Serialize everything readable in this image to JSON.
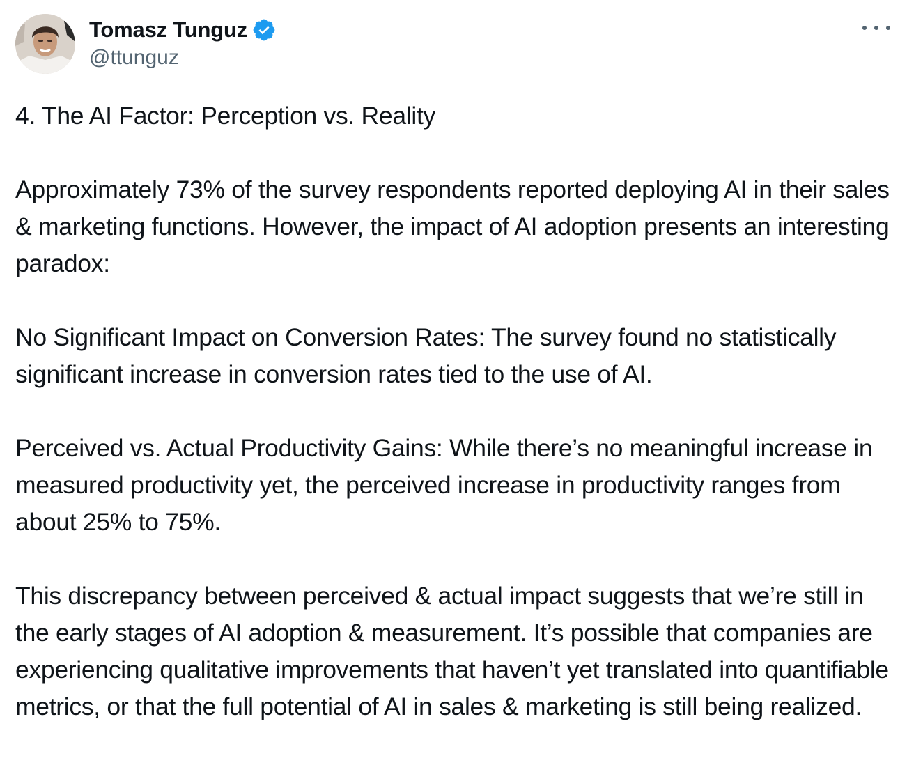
{
  "author": {
    "display_name": "Tomasz Tunguz",
    "handle": "@ttunguz",
    "verified_icon": "verified-badge-icon",
    "verified_color": "#1d9bf0"
  },
  "menu": {
    "icon": "more-options-icon"
  },
  "tweet": {
    "paragraphs": [
      "4. The AI Factor: Perception vs. Reality",
      "Approximately 73% of the survey respondents reported deploying AI in their sales & marketing functions. However, the impact of AI adoption presents an interesting paradox:",
      "No Significant Impact on Conversion Rates: The survey found no statistically significant increase in conversion rates tied to the use of AI.",
      "Perceived vs. Actual Productivity Gains: While there’s no meaningful increase in measured productivity yet, the perceived increase in productivity ranges from about 25% to 75%.",
      "This discrepancy between perceived & actual impact suggests that we’re still in the early stages of AI adoption & measurement. It’s possible that companies are experiencing qualitative improvements that haven’t yet translated into quantifiable metrics, or that the full potential of AI in sales & marketing is still being realized."
    ]
  }
}
